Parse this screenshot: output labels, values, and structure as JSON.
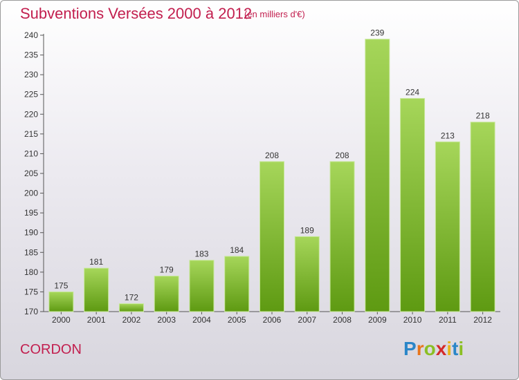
{
  "header": {
    "title": "Subventions Versées 2000 à 2012",
    "subtitle": "(en milliers d'€)"
  },
  "footer": {
    "commune": "CORDON",
    "logo": {
      "letters": [
        "P",
        "r",
        "o",
        "x",
        "i",
        "t",
        "i"
      ],
      "colors": [
        "#2a86c8",
        "#e8751a",
        "#8bbf24",
        "#d42a2a",
        "#e8b51a",
        "#2a86c8",
        "#8bbf24"
      ]
    }
  },
  "chart_data": {
    "type": "bar",
    "categories": [
      "2000",
      "2001",
      "2002",
      "2003",
      "2004",
      "2005",
      "2006",
      "2007",
      "2008",
      "2009",
      "2010",
      "2011",
      "2012"
    ],
    "values": [
      175,
      181,
      172,
      179,
      183,
      184,
      208,
      189,
      208,
      239,
      224,
      213,
      218
    ],
    "title": "Subventions Versées 2000 à 2012",
    "xlabel": "",
    "ylabel": "",
    "ylim": [
      170,
      240
    ],
    "yticks": [
      170,
      175,
      180,
      185,
      190,
      195,
      200,
      205,
      210,
      215,
      220,
      225,
      230,
      235,
      240
    ],
    "grid": false,
    "bar_color_top": "#a6d65a",
    "bar_color_bottom": "#5e9a12"
  }
}
